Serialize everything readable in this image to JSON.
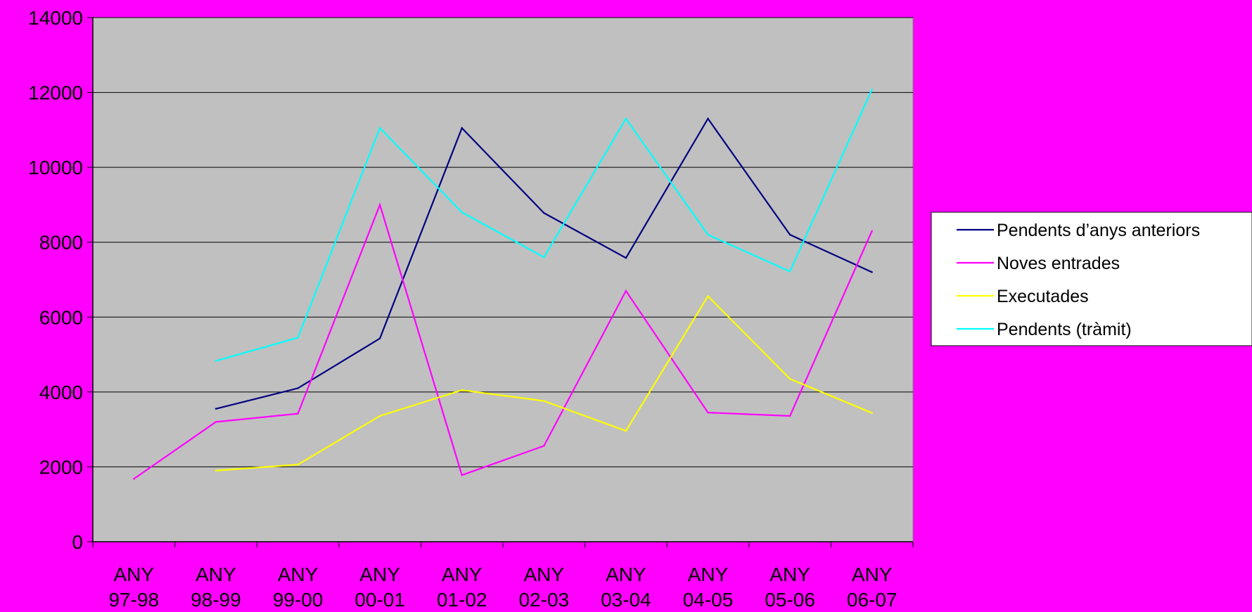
{
  "chart_data": {
    "type": "line",
    "title": "",
    "xlabel": "",
    "ylabel": "",
    "categories": [
      [
        "ANY",
        "97-98"
      ],
      [
        "ANY",
        "98-99"
      ],
      [
        "ANY",
        "99-00"
      ],
      [
        "ANY",
        "00-01"
      ],
      [
        "ANY",
        "01-02"
      ],
      [
        "ANY",
        "02-03"
      ],
      [
        "ANY",
        "03-04"
      ],
      [
        "ANY",
        "04-05"
      ],
      [
        "ANY",
        "05-06"
      ],
      [
        "ANY",
        "06-07"
      ]
    ],
    "ylim": [
      0,
      14000
    ],
    "yticks": [
      0,
      2000,
      4000,
      6000,
      8000,
      10000,
      12000,
      14000
    ],
    "grid": true,
    "legend_position": "right",
    "plot_background": "#c0c0c0",
    "page_background": "#ff00ff",
    "series": [
      {
        "name": "Pendents d’anys anteriors",
        "color": "#000080",
        "values": [
          null,
          3550,
          4100,
          5430,
          11050,
          8780,
          7580,
          11300,
          8200,
          7200
        ]
      },
      {
        "name": "Noves entrades",
        "color": "#ff00ff",
        "values": [
          1680,
          3200,
          3420,
          9000,
          1780,
          2560,
          6700,
          3450,
          3360,
          8300
        ]
      },
      {
        "name": "Executades",
        "color": "#ffff00",
        "values": [
          null,
          1900,
          2060,
          3360,
          4050,
          3760,
          2960,
          6560,
          4350,
          3440
        ]
      },
      {
        "name": "Pendents (tràmit)",
        "color": "#00ffff",
        "values": [
          null,
          4830,
          5450,
          11050,
          8800,
          7600,
          11300,
          8200,
          7220,
          12080
        ]
      }
    ]
  }
}
